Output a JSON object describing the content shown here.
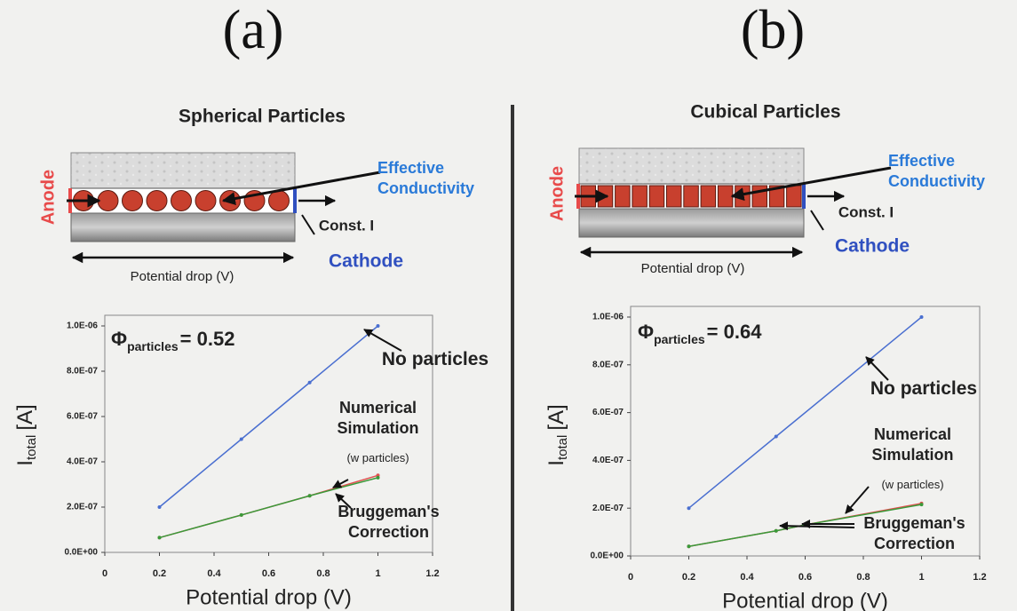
{
  "panels": [
    {
      "label": "(a)",
      "title": "Spherical Particles",
      "anode": "Anode",
      "effective": "Effective Conductivity",
      "const_i": "Const. I",
      "cathode": "Cathode",
      "potential": "Potential drop (V)",
      "shape": "sphere"
    },
    {
      "label": "(b)",
      "title": "Cubical Particles",
      "anode": "Anode",
      "effective": "Effective Conductivity",
      "const_i": "Const. I",
      "cathode": "Cathode",
      "potential": "Potential drop (V)",
      "shape": "cube"
    }
  ],
  "chart_data": [
    {
      "type": "line",
      "xlabel": "Potential drop (V)",
      "ylabel": "I",
      "ylabel_sub": "total",
      "ylabel_unit": "[A]",
      "phi": "Φ",
      "phi_sub": "particles",
      "phi_value": "= 0.52",
      "annotation": "(w particles)",
      "xlim": [
        0,
        1.2
      ],
      "xticks": [
        0,
        0.2,
        0.4,
        0.6,
        0.8,
        1,
        1.2
      ],
      "ylim": [
        0,
        1e-06
      ],
      "yticks": [
        {
          "value": 0,
          "label": "0.0E+00"
        },
        {
          "value": 2e-07,
          "label": "2.0E-07"
        },
        {
          "value": 4e-07,
          "label": "4.0E-07"
        },
        {
          "value": 6e-07,
          "label": "6.0E-07"
        },
        {
          "value": 8e-07,
          "label": "8.0E-07"
        },
        {
          "value": 1e-06,
          "label": "1.0E-06"
        }
      ],
      "series": [
        {
          "name": "No particles",
          "color": "#4a6fd0",
          "x": [
            0.2,
            0.5,
            0.75,
            1
          ],
          "values": [
            2e-07,
            5e-07,
            7.5e-07,
            1e-06
          ]
        },
        {
          "name": "Numerical Simulation",
          "color": "#e05050",
          "x": [
            0.2,
            0.5,
            0.75,
            1
          ],
          "values": [
            6.5e-08,
            1.65e-07,
            2.5e-07,
            3.4e-07
          ]
        },
        {
          "name": "Bruggeman's Correction",
          "color": "#3a9a3a",
          "x": [
            0.2,
            0.5,
            0.75,
            1
          ],
          "values": [
            6.5e-08,
            1.65e-07,
            2.5e-07,
            3.3e-07
          ]
        }
      ]
    },
    {
      "type": "line",
      "xlabel": "Potential drop (V)",
      "ylabel": "I",
      "ylabel_sub": "total",
      "ylabel_unit": "[A]",
      "phi": "Φ",
      "phi_sub": "particles",
      "phi_value": "= 0.64",
      "annotation": "(w particles)",
      "xlim": [
        0,
        1.2
      ],
      "xticks": [
        0,
        0.2,
        0.4,
        0.6,
        0.8,
        1,
        1.2
      ],
      "ylim": [
        0,
        1e-06
      ],
      "yticks": [
        {
          "value": 0,
          "label": "0.0E+00"
        },
        {
          "value": 2e-07,
          "label": "2.0E-07"
        },
        {
          "value": 4e-07,
          "label": "4.0E-07"
        },
        {
          "value": 6e-07,
          "label": "6.0E-07"
        },
        {
          "value": 8e-07,
          "label": "8.0E-07"
        },
        {
          "value": 1e-06,
          "label": "1.0E-06"
        }
      ],
      "series": [
        {
          "name": "No particles",
          "color": "#4a6fd0",
          "x": [
            0.2,
            0.5,
            1
          ],
          "values": [
            2e-07,
            5e-07,
            1e-06
          ]
        },
        {
          "name": "Numerical Simulation",
          "color": "#e05050",
          "x": [
            0.2,
            0.5,
            0.6,
            1
          ],
          "values": [
            4e-08,
            1.05e-07,
            1.3e-07,
            2.2e-07
          ]
        },
        {
          "name": "Bruggeman's Correction",
          "color": "#3a9a3a",
          "x": [
            0.2,
            0.5,
            0.6,
            1
          ],
          "values": [
            4e-08,
            1.05e-07,
            1.3e-07,
            2.15e-07
          ]
        }
      ]
    }
  ]
}
